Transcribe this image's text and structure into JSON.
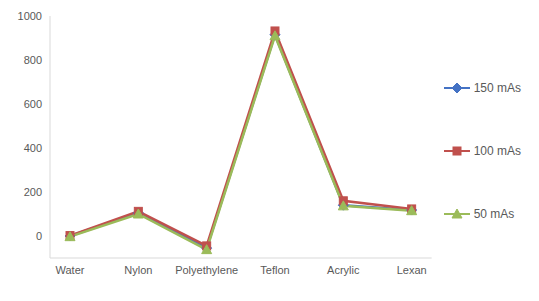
{
  "chart_data": {
    "type": "line",
    "categories": [
      "Water",
      "Nylon",
      "Polyethylene",
      "Teflon",
      "Acrylic",
      "Lexan"
    ],
    "series": [
      {
        "name": "150 mAs",
        "color": "#4472c4",
        "marker": "diamond",
        "values": [
          0,
          105,
          -55,
          915,
          140,
          118
        ]
      },
      {
        "name": "100 mAs",
        "color": "#c0504d",
        "marker": "square",
        "values": [
          2,
          112,
          -45,
          932,
          160,
          123
        ]
      },
      {
        "name": "50 mAs",
        "color": "#9bbb59",
        "marker": "triangle",
        "values": [
          -3,
          100,
          -62,
          910,
          137,
          115
        ]
      }
    ],
    "ylim": [
      -100,
      1000
    ],
    "yticks": [
      0,
      200,
      400,
      600,
      800,
      1000
    ],
    "grid": false,
    "legend": "right"
  }
}
